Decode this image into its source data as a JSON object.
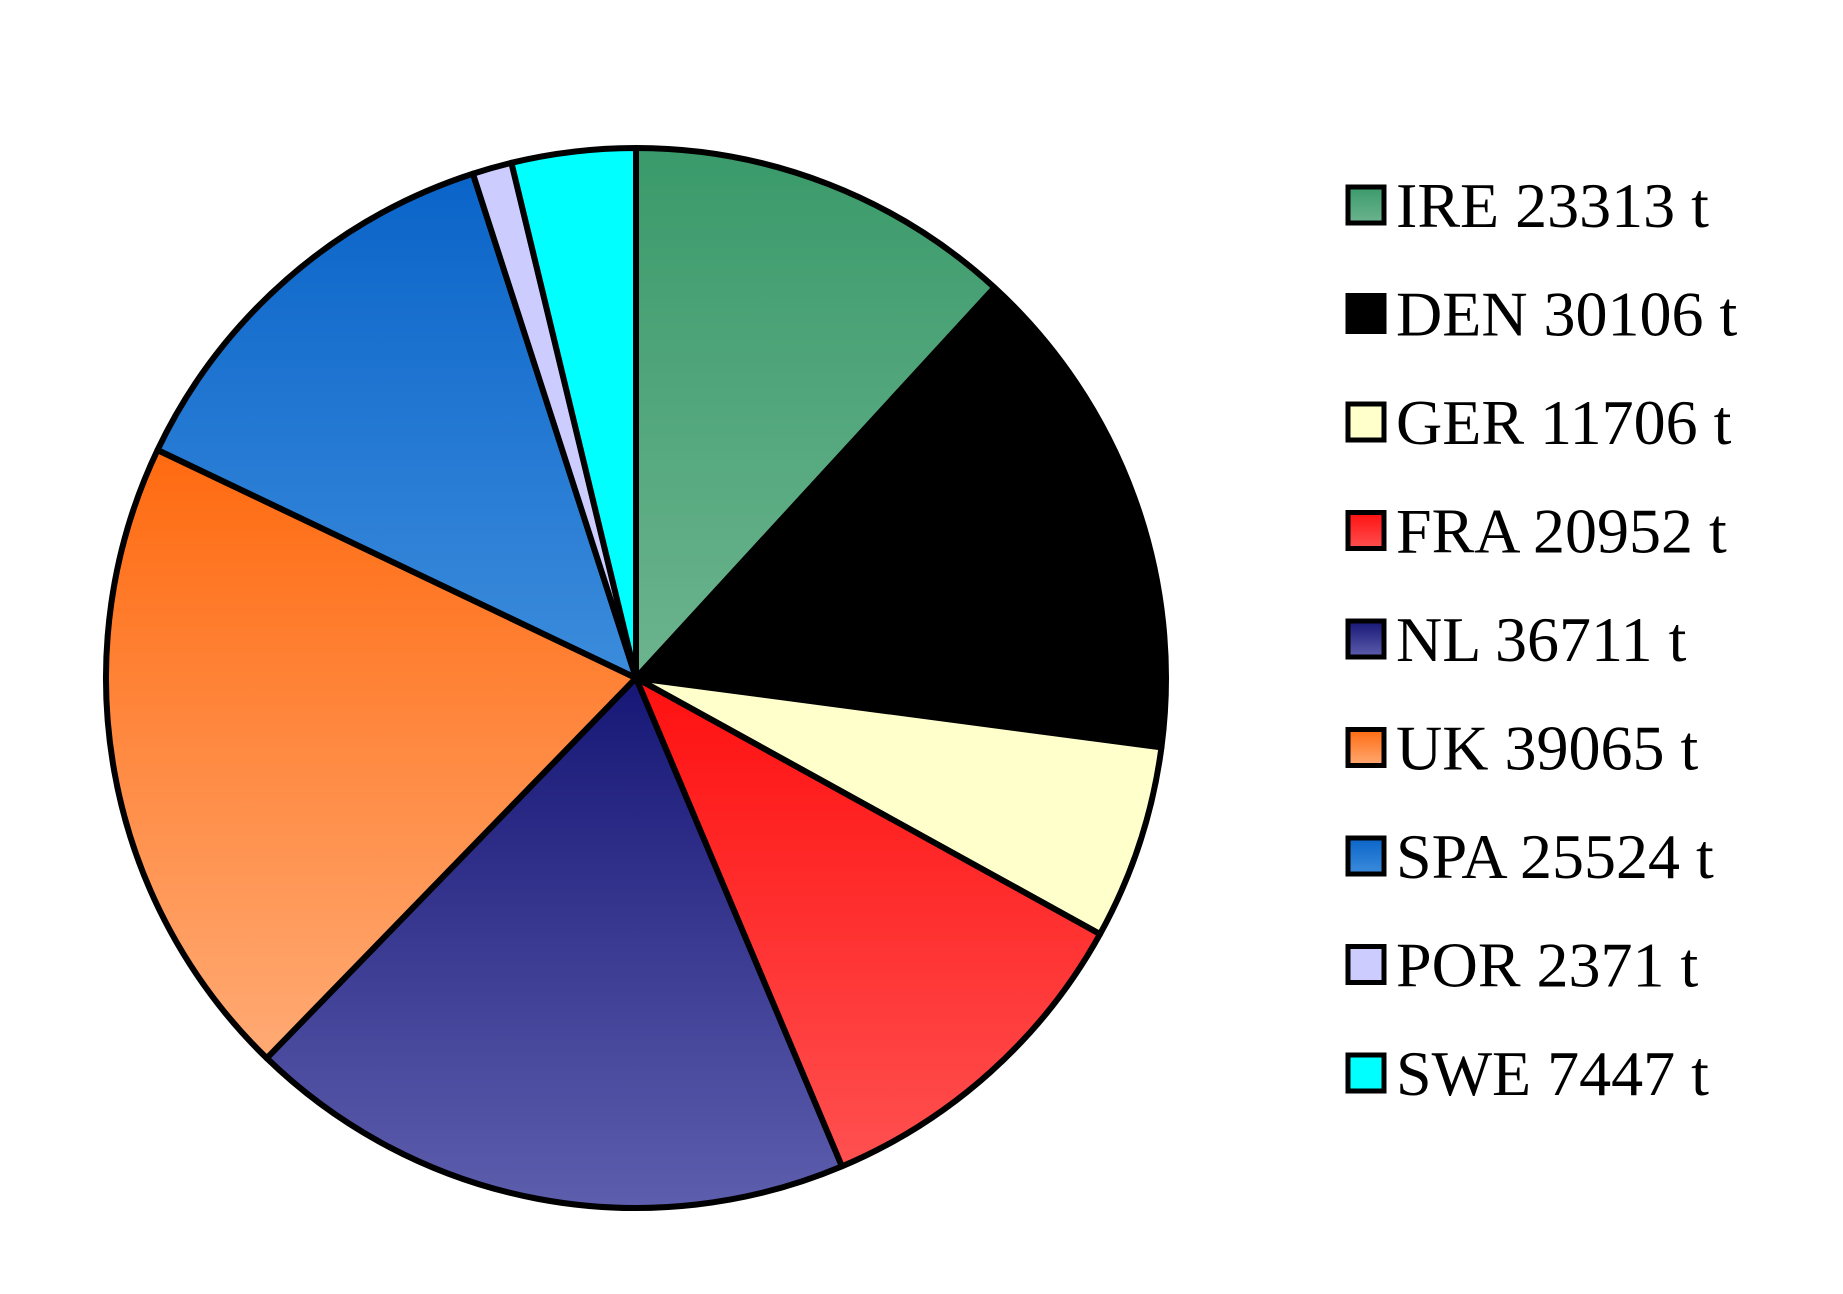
{
  "chart_data": {
    "type": "pie",
    "title": "",
    "start_angle_deg": 0,
    "direction": "clockwise",
    "legend_position": "right",
    "unit": "t",
    "slices": [
      {
        "label": "IRE 23313 t",
        "value": 23313,
        "color_top": "#3a9a6a",
        "color_bottom": "#6cb48e"
      },
      {
        "label": "DEN 30106 t",
        "value": 30106,
        "color_top": "#000000",
        "color_bottom": "#000000"
      },
      {
        "label": "GER 11706 t",
        "value": 11706,
        "color_top": "#ffffcc",
        "color_bottom": "#ffffcc"
      },
      {
        "label": "FRA 20952 t",
        "value": 20952,
        "color_top": "#ff1010",
        "color_bottom": "#ff5050"
      },
      {
        "label": "NL 36711 t",
        "value": 36711,
        "color_top": "#161676",
        "color_bottom": "#5e5eae"
      },
      {
        "label": "UK 39065 t",
        "value": 39065,
        "color_top": "#ff6a10",
        "color_bottom": "#ffaa74"
      },
      {
        "label": "SPA 25524 t",
        "value": 25524,
        "color_top": "#0a64c8",
        "color_bottom": "#3c8cdc"
      },
      {
        "label": "POR 2371 t",
        "value": 2371,
        "color_top": "#ccccff",
        "color_bottom": "#ccccff"
      },
      {
        "label": "SWE 7447 t",
        "value": 7447,
        "color_top": "#00ffff",
        "color_bottom": "#00ffff"
      }
    ]
  }
}
